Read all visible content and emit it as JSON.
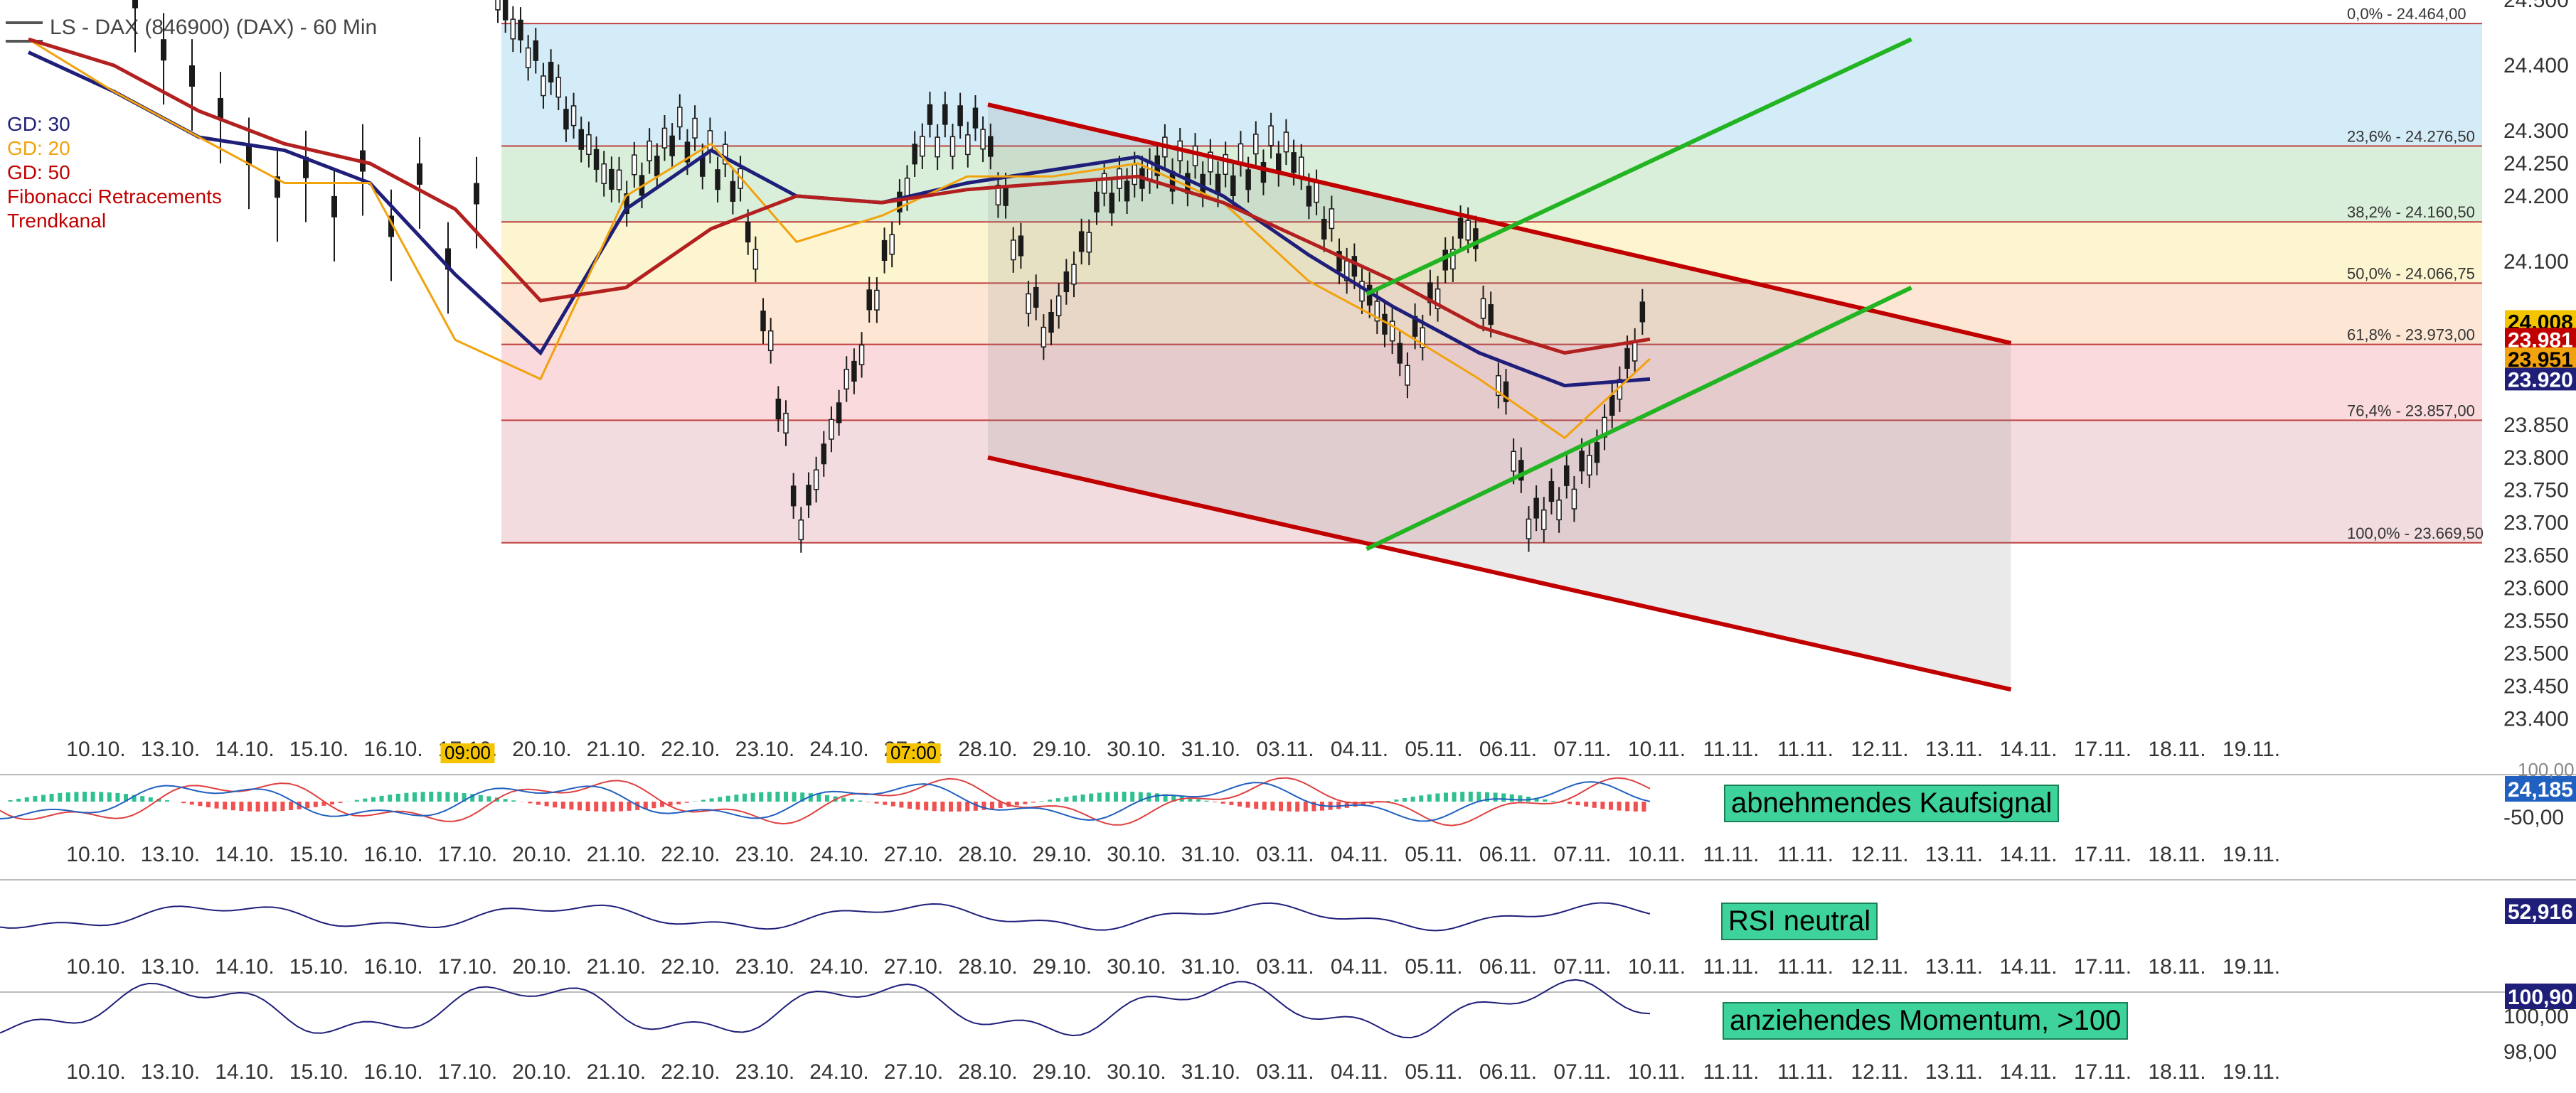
{
  "title": "LS - DAX (846900) (DAX) - 60 Min",
  "legend": [
    {
      "label": "GD: 30",
      "color": "#1f1f7a"
    },
    {
      "label": "GD: 20",
      "color": "#f2a20c"
    },
    {
      "label": "GD: 50",
      "color": "#c00000"
    },
    {
      "label": "Fibonacci Retracements",
      "color": "#c00000"
    },
    {
      "label": "Trendkanal",
      "color": "#c00000"
    }
  ],
  "x_labels": [
    "10.10.",
    "13.10.",
    "14.10.",
    "15.10.",
    "16.10.",
    "17.10.",
    "20.10.",
    "21.10.",
    "22.10.",
    "23.10.",
    "24.10.",
    "27.10.",
    "28.10.",
    "29.10.",
    "30.10.",
    "31.10.",
    "03.11.",
    "04.11.",
    "05.11.",
    "06.11.",
    "07.11.",
    "10.11.",
    "11.11.",
    "11.11.",
    "12.11.",
    "13.11.",
    "14.11.",
    "17.11.",
    "18.11.",
    "19.11."
  ],
  "highlight_labels": [
    {
      "index": 5,
      "text": "09:00"
    },
    {
      "index": 11,
      "text": "07:00"
    }
  ],
  "fib_levels": [
    {
      "label": "0,0% - 24.464,00",
      "value": 24464.0
    },
    {
      "label": "23,6% - 24.276,50",
      "value": 24276.5
    },
    {
      "label": "38,2% - 24.160,50",
      "value": 24160.5
    },
    {
      "label": "50,0% - 24.066,75",
      "value": 24066.75
    },
    {
      "label": "61,8% - 23.973,00",
      "value": 23973.0
    },
    {
      "label": "76,4% - 23.857,00",
      "value": 23857.0
    },
    {
      "label": "100,0% - 23.669,50",
      "value": 23669.5
    }
  ],
  "fib_colors": [
    "#cde9f6",
    "#d4ecd4",
    "#fbf3c8",
    "#fde3cc",
    "#f9d4d6",
    "#f0d6d9"
  ],
  "y_ticks": [
    "24.500",
    "24.400",
    "24.300",
    "24.250",
    "24.200",
    "24.100",
    "24.008",
    "23.981",
    "23.951",
    "23.920",
    "23.850",
    "23.800",
    "23.750",
    "23.700",
    "23.650",
    "23.600",
    "23.550",
    "23.500",
    "23.450",
    "23.400"
  ],
  "price_tags": [
    {
      "text": "24.008",
      "value": 24008,
      "color": "#f5c400",
      "textColor": "#000"
    },
    {
      "text": "23.981",
      "value": 23981,
      "color": "#c00000",
      "textColor": "#fff"
    },
    {
      "text": "23.951",
      "value": 23951,
      "color": "#f2a20c",
      "textColor": "#000"
    },
    {
      "text": "23.920",
      "value": 23920,
      "color": "#1f1f7a",
      "textColor": "#fff"
    }
  ],
  "macd": {
    "signal": "abnehmendes Kaufsignal",
    "tag": "24,185",
    "tick": "-50,00",
    "top_tick": "100,00"
  },
  "rsi": {
    "signal": "RSI neutral",
    "tag": "52,916"
  },
  "momentum": {
    "signal": "anziehendes Momentum, >100",
    "tag": "100,90",
    "tick_top": "100,00",
    "tick_bottom": "98,00"
  },
  "chart_data": {
    "type": "line",
    "title": "LS - DAX (846900) (DAX) - 60 Min",
    "x": [
      "10.10.",
      "13.10.",
      "14.10.",
      "15.10.",
      "16.10.",
      "17.10.",
      "20.10.",
      "21.10.",
      "22.10.",
      "23.10.",
      "24.10.",
      "27.10.",
      "28.10.",
      "29.10.",
      "30.10.",
      "31.10.",
      "03.11.",
      "04.11.",
      "05.11.",
      "06.11."
    ],
    "series": [
      {
        "name": "GD: 30",
        "values": [
          24420,
          24360,
          24290,
          24270,
          24220,
          24080,
          23960,
          24180,
          24270,
          24200,
          24190,
          24220,
          24240,
          24260,
          24200,
          24110,
          24030,
          23960,
          23910,
          23920
        ]
      },
      {
        "name": "GD: 20",
        "values": [
          24440,
          24360,
          24290,
          24220,
          24220,
          23980,
          23920,
          24200,
          24280,
          24130,
          24170,
          24230,
          24230,
          24250,
          24190,
          24070,
          24000,
          23920,
          23830,
          23951
        ]
      },
      {
        "name": "GD: 50",
        "values": [
          24440,
          24400,
          24330,
          24280,
          24250,
          24180,
          24040,
          24060,
          24150,
          24200,
          24190,
          24210,
          24220,
          24230,
          24190,
          24130,
          24070,
          24000,
          23960,
          23981
        ]
      }
    ],
    "close_path": [
      24500,
      24350,
      24200,
      24300,
      24220,
      23700,
      23980,
      24300,
      24300,
      23980,
      24200,
      24250,
      24230,
      24280,
      24100,
      23950,
      24170,
      23700,
      23780,
      24040
    ],
    "ylim": [
      23380,
      24500
    ],
    "trend_channel": {
      "upper": [
        [
          "28.10.",
          24340
        ],
        [
          "13.11.",
          23975
        ]
      ],
      "lower": [
        [
          "28.10.",
          23800
        ],
        [
          "13.11.",
          23445
        ]
      ],
      "inner_support": [
        [
          "04.11.",
          23660
        ],
        [
          "13.11.",
          24060
        ]
      ],
      "inner_resistance": [
        [
          "04.11.",
          24050
        ],
        [
          "13.11.",
          24440
        ]
      ]
    }
  }
}
